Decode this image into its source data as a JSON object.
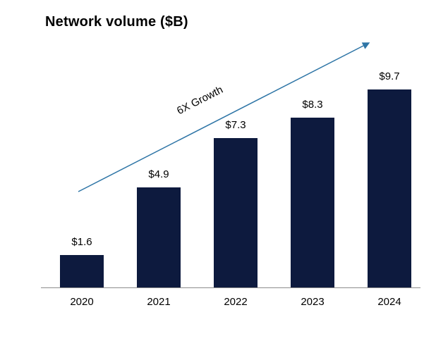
{
  "chart": {
    "title": "Network volume ($B)",
    "annotation": "6X Growth"
  },
  "chart_data": {
    "type": "bar",
    "title": "Network volume ($B)",
    "categories": [
      "2020",
      "2021",
      "2022",
      "2023",
      "2024"
    ],
    "values": [
      1.6,
      4.9,
      7.3,
      8.3,
      9.7
    ],
    "value_labels": [
      "$1.6",
      "$4.9",
      "$7.3",
      "$8.3",
      "$9.7"
    ],
    "series": [
      {
        "name": "Network volume ($B)",
        "values": [
          1.6,
          4.9,
          7.3,
          8.3,
          9.7
        ]
      }
    ],
    "xlabel": "",
    "ylabel": "",
    "ylim": [
      0,
      10
    ],
    "grid": false,
    "legend_position": "none",
    "annotation": "6X Growth",
    "bar_color": "#0d1a3e",
    "arrow_color": "#2e75a6",
    "axis_color": "#8c8c8c"
  }
}
